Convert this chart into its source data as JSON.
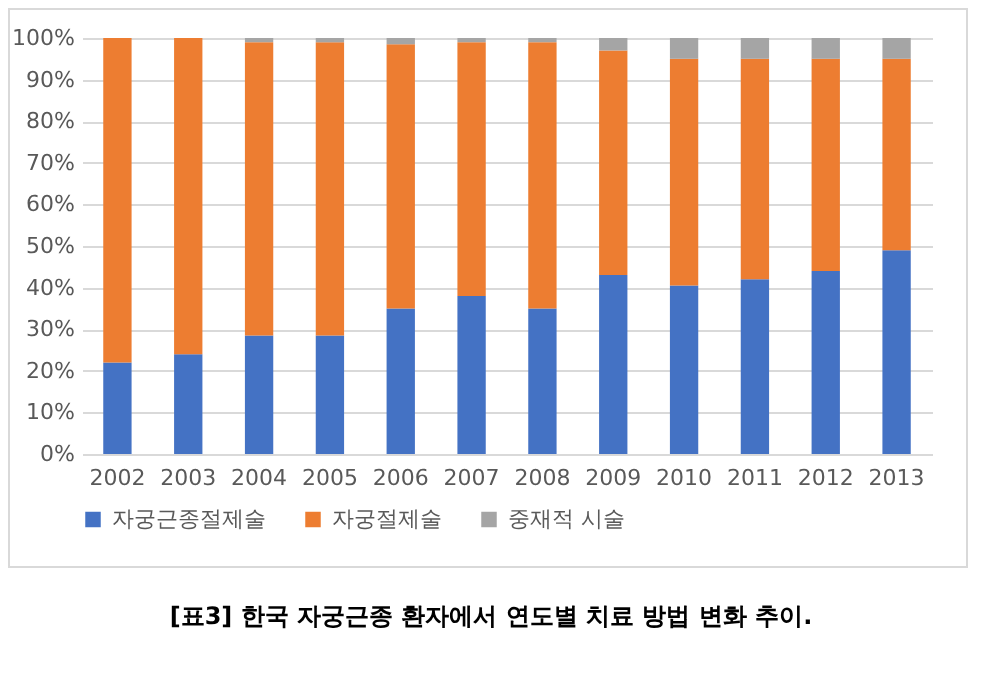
{
  "chart_data": {
    "type": "bar",
    "stacked": true,
    "categories": [
      "2002",
      "2003",
      "2004",
      "2005",
      "2006",
      "2007",
      "2008",
      "2009",
      "2010",
      "2011",
      "2012",
      "2013"
    ],
    "series": [
      {
        "name": "자궁근종절제술",
        "color": "#4472c4",
        "values": [
          22,
          24,
          28.5,
          28.5,
          35,
          38,
          35,
          43,
          40.5,
          42,
          44,
          49
        ]
      },
      {
        "name": "자궁절제술",
        "color": "#ed7d31",
        "values": [
          78,
          76,
          70.5,
          70.5,
          63.5,
          61,
          64,
          54,
          54.5,
          53,
          51,
          46
        ]
      },
      {
        "name": "중재적 시술",
        "color": "#a5a5a5",
        "values": [
          0,
          0,
          1,
          1,
          1.5,
          1,
          1,
          3,
          5,
          5,
          5,
          5
        ]
      }
    ],
    "ylim": [
      0,
      100
    ],
    "yticks": [
      {
        "value": 0,
        "label": "0%"
      },
      {
        "value": 10,
        "label": "10%"
      },
      {
        "value": 20,
        "label": "20%"
      },
      {
        "value": 30,
        "label": "30%"
      },
      {
        "value": 40,
        "label": "40%"
      },
      {
        "value": 50,
        "label": "50%"
      },
      {
        "value": 60,
        "label": "60%"
      },
      {
        "value": 70,
        "label": "70%"
      },
      {
        "value": 80,
        "label": "80%"
      },
      {
        "value": 90,
        "label": "90%"
      },
      {
        "value": 100,
        "label": "100%"
      }
    ],
    "grid": "y",
    "legend": "bottom",
    "annotations": [
      "[표3] 한국 자궁근종 환자에서 연도별 치료 방법 변화 추이."
    ]
  }
}
